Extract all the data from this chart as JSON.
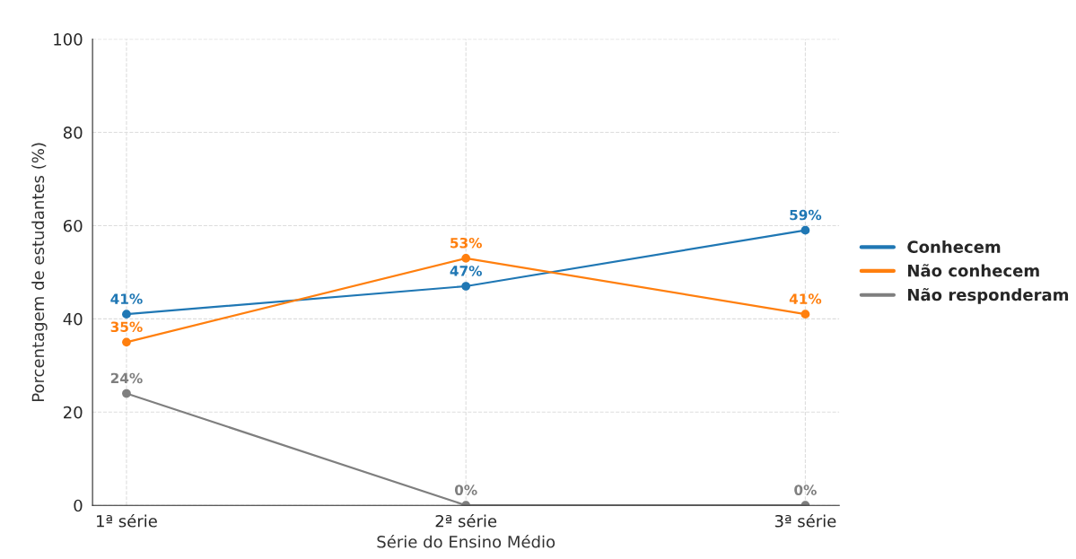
{
  "chart_data": {
    "type": "line",
    "xlabel": "Série do Ensino Médio",
    "ylabel": "Porcentagem de estudantes (%)",
    "categories": [
      "1ª série",
      "2ª série",
      "3ª série"
    ],
    "series": [
      {
        "name": "Conhecem",
        "color": "#1f77b4",
        "values": [
          41,
          47,
          59
        ],
        "value_labels": [
          "41%",
          "47%",
          "59%"
        ]
      },
      {
        "name": "Não conhecem",
        "color": "#ff7f0e",
        "values": [
          35,
          53,
          41
        ],
        "value_labels": [
          "35%",
          "53%",
          "41%"
        ]
      },
      {
        "name": "Não responderam",
        "color": "#7f7f7f",
        "values": [
          24,
          0,
          0
        ],
        "value_labels": [
          "24%",
          "0%",
          "0%"
        ]
      }
    ],
    "ylim": [
      0,
      100
    ],
    "yticks": [
      0,
      20,
      40,
      60,
      80,
      100
    ],
    "grid": true,
    "legend": "right",
    "marker": "circle",
    "line_style": "solid"
  }
}
